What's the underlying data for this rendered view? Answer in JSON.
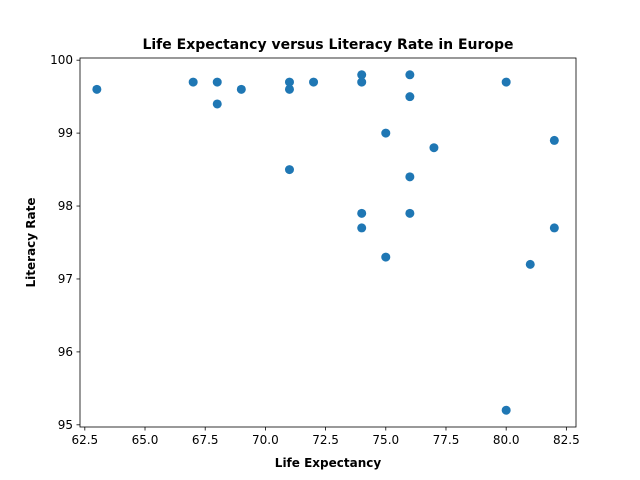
{
  "chart_data": {
    "type": "scatter",
    "title": "Life Expectancy versus Literacy Rate in Europe",
    "xlabel": "Life Expectancy",
    "ylabel": "Literacy Rate",
    "xlim": [
      62.3,
      82.9
    ],
    "ylim": [
      94.97,
      100.03
    ],
    "xticks": [
      62.5,
      65.0,
      67.5,
      70.0,
      72.5,
      75.0,
      77.5,
      80.0,
      82.5
    ],
    "xtick_labels": [
      "62.5",
      "65.0",
      "67.5",
      "70.0",
      "72.5",
      "75.0",
      "77.5",
      "80.0",
      "82.5"
    ],
    "yticks": [
      95,
      96,
      97,
      98,
      99,
      100
    ],
    "ytick_labels": [
      "95",
      "96",
      "97",
      "98",
      "99",
      "100"
    ],
    "grid": false,
    "marker_color": "#1f77b4",
    "points": [
      {
        "x": 63,
        "y": 99.6
      },
      {
        "x": 67,
        "y": 99.7
      },
      {
        "x": 68,
        "y": 99.7
      },
      {
        "x": 68,
        "y": 99.4
      },
      {
        "x": 69,
        "y": 99.6
      },
      {
        "x": 71,
        "y": 99.7
      },
      {
        "x": 71,
        "y": 99.6
      },
      {
        "x": 71,
        "y": 98.5
      },
      {
        "x": 72,
        "y": 99.7
      },
      {
        "x": 74,
        "y": 99.8
      },
      {
        "x": 74,
        "y": 99.7
      },
      {
        "x": 74,
        "y": 97.9
      },
      {
        "x": 74,
        "y": 97.7
      },
      {
        "x": 75,
        "y": 99.0
      },
      {
        "x": 75,
        "y": 97.3
      },
      {
        "x": 76,
        "y": 99.8
      },
      {
        "x": 76,
        "y": 99.5
      },
      {
        "x": 76,
        "y": 98.4
      },
      {
        "x": 76,
        "y": 97.9
      },
      {
        "x": 77,
        "y": 98.8
      },
      {
        "x": 80,
        "y": 99.7
      },
      {
        "x": 80,
        "y": 95.2
      },
      {
        "x": 81,
        "y": 97.2
      },
      {
        "x": 82,
        "y": 98.9
      },
      {
        "x": 82,
        "y": 97.7
      }
    ]
  }
}
